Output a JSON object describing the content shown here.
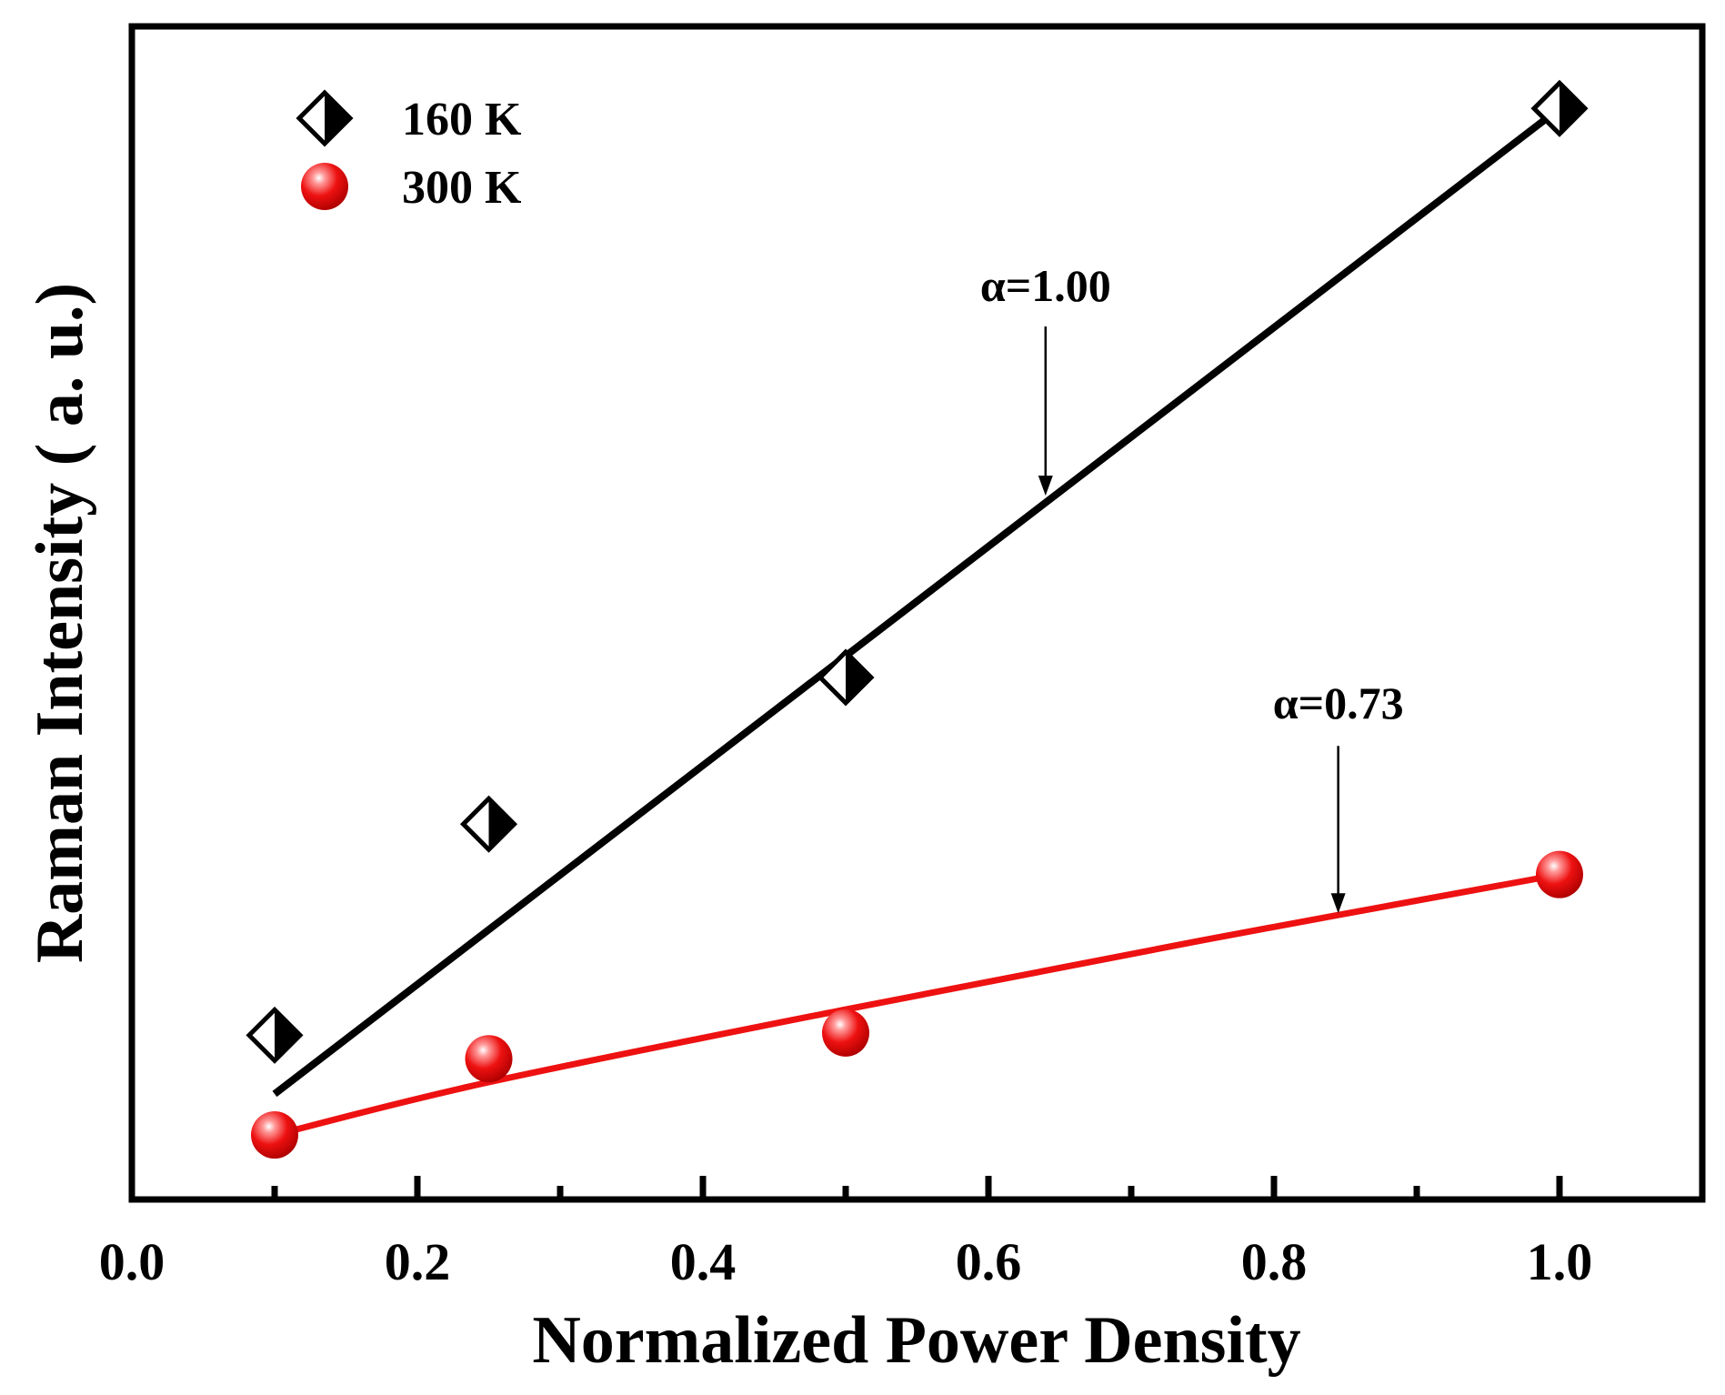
{
  "chart_data": {
    "type": "scatter",
    "xlabel": "Normalized Power Density",
    "ylabel": "Raman Intensity ( a. u.)",
    "xlim": [
      0.0,
      1.1
    ],
    "ylim": [
      0.0,
      1.0
    ],
    "x_major_ticks": [
      0.0,
      0.2,
      0.4,
      0.6,
      0.8,
      1.0
    ],
    "x_tick_labels": [
      "0.0",
      "0.2",
      "0.4",
      "0.6",
      "0.8",
      "1.0"
    ],
    "x_minor_ticks": [
      0.1,
      0.3,
      0.5,
      0.7,
      0.9
    ],
    "y_tick_labels": false,
    "grid": false,
    "legend_position": "top-left",
    "series": [
      {
        "name": "160 K",
        "marker": "half-filled-diamond",
        "color": "#000000",
        "x": [
          0.1,
          0.25,
          0.5,
          1.0
        ],
        "y": [
          0.14,
          0.32,
          0.445,
          0.93
        ],
        "fit": {
          "x": [
            0.1,
            1.0
          ],
          "y": [
            0.09,
            0.93
          ],
          "alpha_label": "α=1.00",
          "color": "#000000"
        }
      },
      {
        "name": "300 K",
        "marker": "red-sphere",
        "color": "#ee1111",
        "x": [
          0.1,
          0.25,
          0.5,
          1.0
        ],
        "y": [
          0.055,
          0.12,
          0.142,
          0.277
        ],
        "fit": {
          "x": [
            0.1,
            0.25,
            0.5,
            0.75,
            1.0
          ],
          "y": [
            0.055,
            0.1,
            0.162,
            0.221,
            0.277
          ],
          "alpha_label": "α=0.73",
          "color": "#ee1111"
        }
      }
    ],
    "annotations": [
      {
        "text": "α=1.00",
        "arrow_to": [
          0.64,
          0.6
        ]
      },
      {
        "text": "α=0.73",
        "arrow_to": [
          0.845,
          0.244
        ]
      }
    ]
  }
}
